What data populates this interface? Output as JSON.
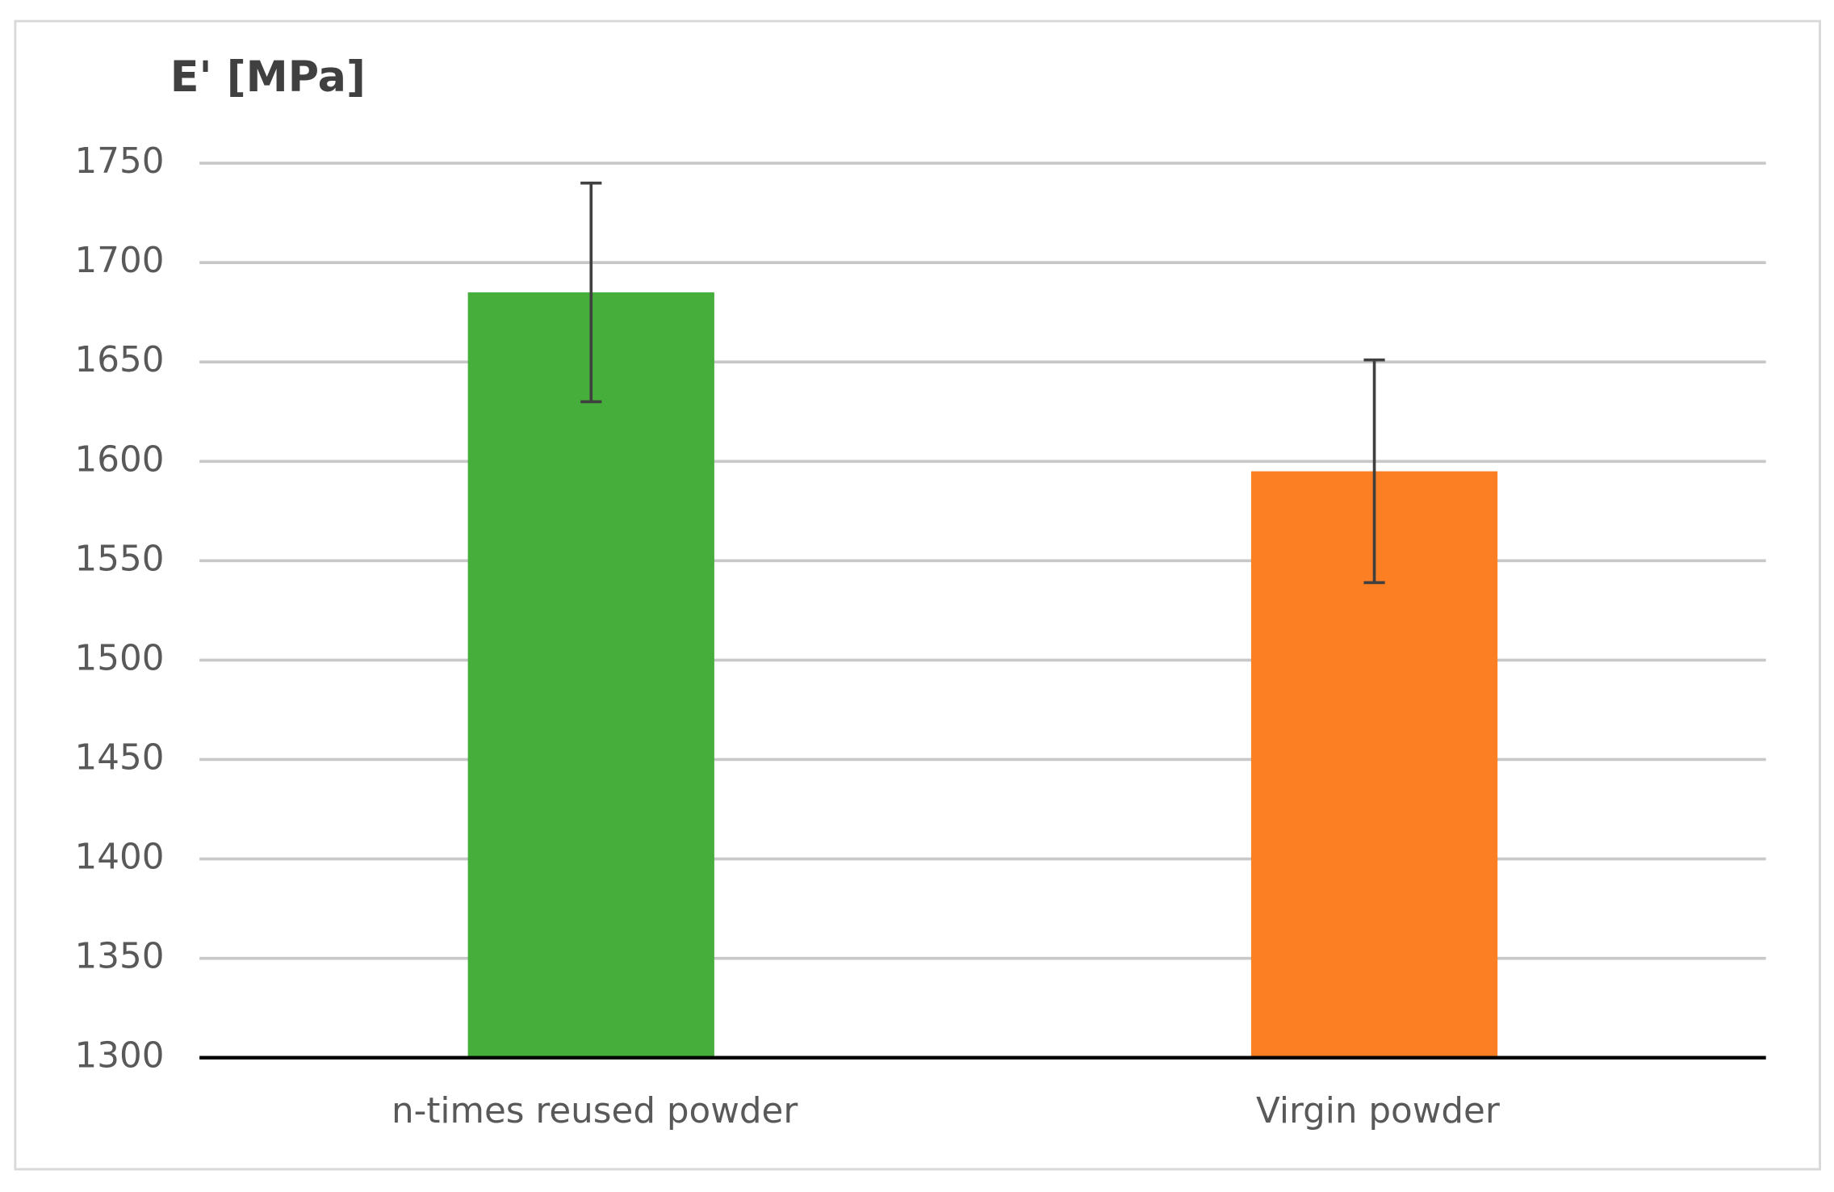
{
  "chart_data": {
    "type": "bar",
    "y_axis_label": "E' [MPa]",
    "categories": [
      "n-times reused powder",
      "Virgin powder"
    ],
    "values": [
      1685,
      1595
    ],
    "errors": [
      55,
      56
    ],
    "colors": [
      "#46ae3b",
      "#fd7f23"
    ],
    "ylim": [
      1300,
      1750
    ],
    "yticks": [
      1300,
      1350,
      1400,
      1450,
      1500,
      1550,
      1600,
      1650,
      1700,
      1750
    ],
    "grid": true
  }
}
